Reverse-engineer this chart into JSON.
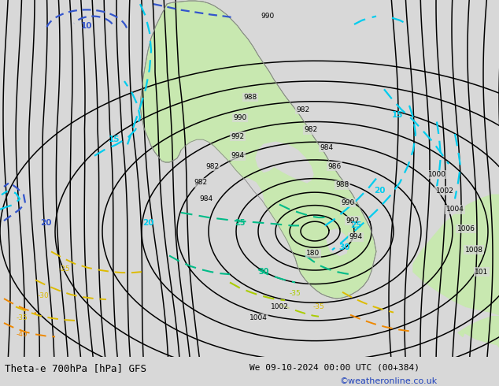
{
  "title_left": "Theta-e 700hPa [hPa] GFS",
  "title_right": "We 09-10-2024 00:00 UTC (00+384)",
  "credit": "©weatheronline.co.uk",
  "bg_grey": "#d8d8d8",
  "green_fill": "#c8e8b0",
  "coast_color": "#888888",
  "black": "#000000",
  "cyan_bright": "#00ccee",
  "blue_dark": "#3355cc",
  "teal": "#00bb88",
  "yellow_lime": "#aacc00",
  "yellow": "#ddbb00",
  "orange": "#ee8800",
  "lw_black": 1.1,
  "lw_colored": 1.5,
  "label_fs": 7,
  "title_fs": 9
}
